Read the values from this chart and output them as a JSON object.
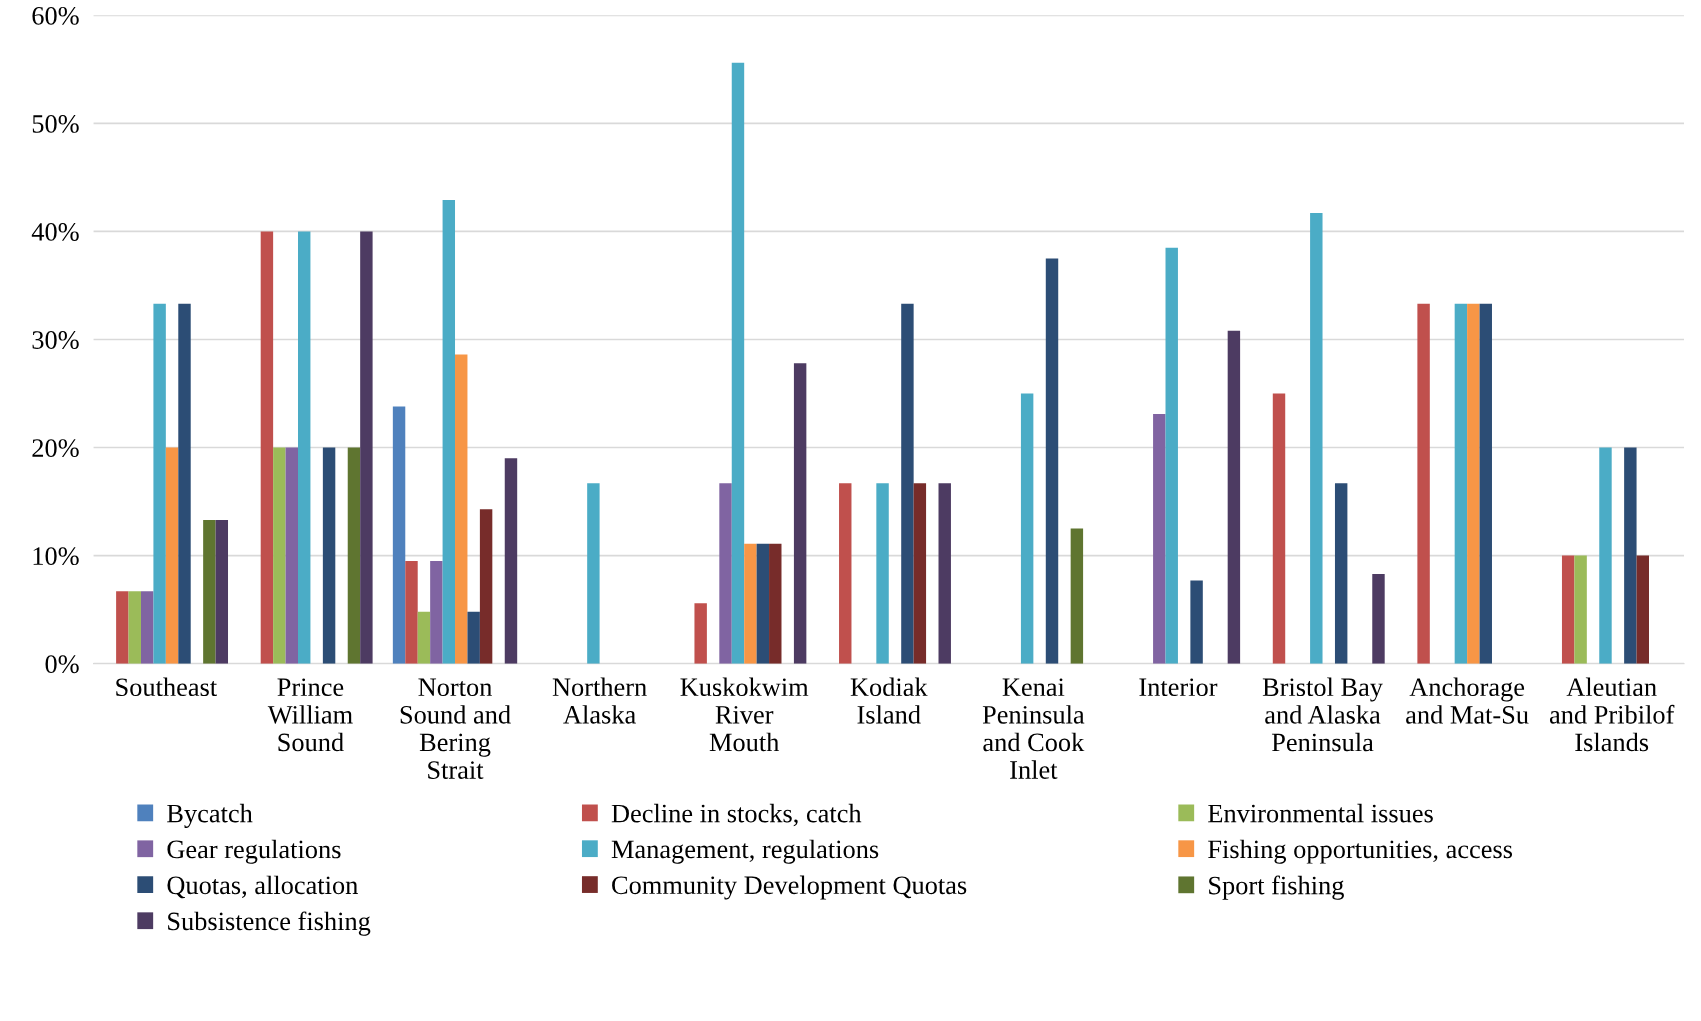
{
  "chart_data": {
    "type": "bar",
    "categories": [
      "Southeast",
      "Prince\nWilliam\nSound",
      "Norton\nSound and\nBering\nStrait",
      "Northern\nAlaska",
      "Kuskokwim\nRiver\nMouth",
      "Kodiak\nIsland",
      "Kenai\nPeninsula\nand Cook\nInlet",
      "Interior",
      "Bristol Bay\nand Alaska\nPeninsula",
      "Anchorage\nand Mat-Su",
      "Aleutian\nand Pribilof\nIslands"
    ],
    "series": [
      {
        "name": "Bycatch",
        "color": "#4f81bd",
        "values": [
          0,
          0,
          23.8,
          0,
          0,
          0,
          0,
          0,
          0,
          0,
          0
        ]
      },
      {
        "name": "Decline in stocks, catch",
        "color": "#c0504d",
        "values": [
          6.7,
          40,
          9.5,
          0,
          5.6,
          16.7,
          0,
          0,
          25,
          33.3,
          10
        ]
      },
      {
        "name": "Environmental issues",
        "color": "#9bbb59",
        "values": [
          6.7,
          20,
          4.8,
          0,
          0,
          0,
          0,
          0,
          0,
          0,
          10
        ]
      },
      {
        "name": "Gear regulations",
        "color": "#8064a2",
        "values": [
          6.7,
          20,
          9.5,
          0,
          16.7,
          0,
          0,
          23.1,
          0,
          0,
          0
        ]
      },
      {
        "name": "Management, regulations",
        "color": "#4bacc6",
        "values": [
          33.3,
          40,
          42.9,
          16.7,
          55.6,
          16.7,
          25,
          38.5,
          41.7,
          33.3,
          20
        ]
      },
      {
        "name": "Fishing opportunities, access",
        "color": "#f79646",
        "values": [
          20,
          0,
          28.6,
          0,
          11.1,
          0,
          0,
          0,
          0,
          33.3,
          0
        ]
      },
      {
        "name": "Quotas, allocation",
        "color": "#2c4d75",
        "values": [
          33.3,
          20,
          4.8,
          0,
          11.1,
          33.3,
          37.5,
          7.7,
          16.7,
          33.3,
          20
        ]
      },
      {
        "name": "Community Development Quotas",
        "color": "#772c2a",
        "values": [
          0,
          0,
          14.3,
          0,
          11.1,
          16.7,
          0,
          0,
          0,
          0,
          10
        ]
      },
      {
        "name": "Sport fishing",
        "color": "#5f7530",
        "values": [
          13.3,
          20,
          0,
          0,
          0,
          0,
          12.5,
          0,
          0,
          0,
          0
        ]
      },
      {
        "name": "Subsistence fishing",
        "color": "#4d3b62",
        "values": [
          13.3,
          40,
          19,
          0,
          27.8,
          16.7,
          0,
          30.8,
          8.3,
          0,
          0
        ]
      }
    ],
    "ylim": [
      0,
      60
    ],
    "yticks": [
      {
        "value": 0,
        "label": "0%"
      },
      {
        "value": 10,
        "label": "10%"
      },
      {
        "value": 20,
        "label": "20%"
      },
      {
        "value": 30,
        "label": "30%"
      },
      {
        "value": 40,
        "label": "40%"
      },
      {
        "value": 50,
        "label": "50%"
      },
      {
        "value": 60,
        "label": "60%"
      }
    ],
    "grid": "y",
    "legend": "bottom"
  }
}
